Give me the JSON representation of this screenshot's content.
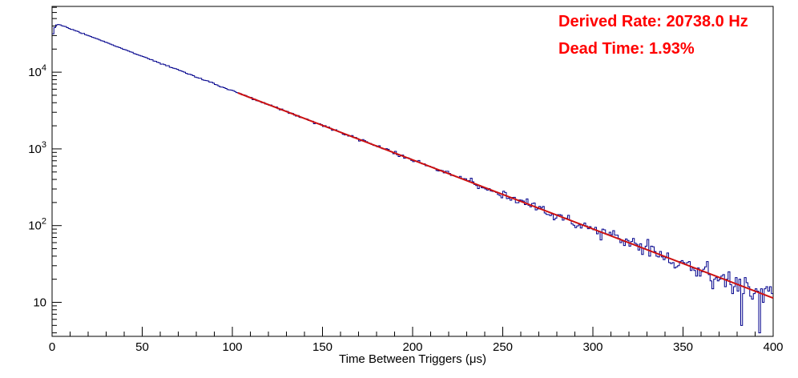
{
  "chart_data": {
    "type": "histogram",
    "title": "",
    "xlabel": "Time Between Triggers (μs)",
    "ylabel": "",
    "xlim": [
      0,
      400
    ],
    "ylim": [
      3.6,
      72000
    ],
    "ylog": true,
    "grid": false,
    "x_major_ticks": [
      0,
      50,
      100,
      150,
      200,
      250,
      300,
      350,
      400
    ],
    "x_minor_step": 10,
    "y_major_ticks": [
      10,
      100,
      1000,
      10000
    ],
    "bin_width_us": 1,
    "n_bins": 400,
    "histogram_color": "#00008c",
    "model": {
      "type": "exponential",
      "amplitude": 45500,
      "tau_us": 48.22,
      "rise_counts": [
        31500,
        38500,
        41300,
        41900
      ]
    },
    "noise": {
      "model": "poisson",
      "seed": 20738
    },
    "fit": {
      "type": "exponential",
      "amplitude": 45500,
      "tau_us": 48.22,
      "range_us": [
        103,
        400
      ],
      "color": "#cc1111",
      "line_width": 2
    },
    "sampled_points": {
      "t_us": [
        0,
        5,
        10,
        20,
        30,
        40,
        50,
        60,
        70,
        80,
        90,
        100,
        120,
        140,
        160,
        180,
        200,
        220,
        240,
        260,
        280,
        300,
        320,
        340,
        360,
        380,
        400
      ],
      "counts": [
        34000,
        41500,
        36980,
        30050,
        24420,
        19850,
        16130,
        13110,
        10660,
        8660,
        7040,
        5720,
        3780,
        2500,
        1650,
        1090,
        720,
        476,
        314,
        208,
        137,
        91,
        60,
        40,
        26,
        17,
        11
      ]
    },
    "annotations": [
      {
        "name": "derived-rate",
        "label": "Derived Rate: 20738.0 Hz",
        "color": "#ff0000"
      },
      {
        "name": "dead-time",
        "label": "Dead Time: 1.93%",
        "color": "#ff0000"
      }
    ],
    "derived_rate_hz": 20738.0,
    "dead_time_percent": 1.93
  }
}
